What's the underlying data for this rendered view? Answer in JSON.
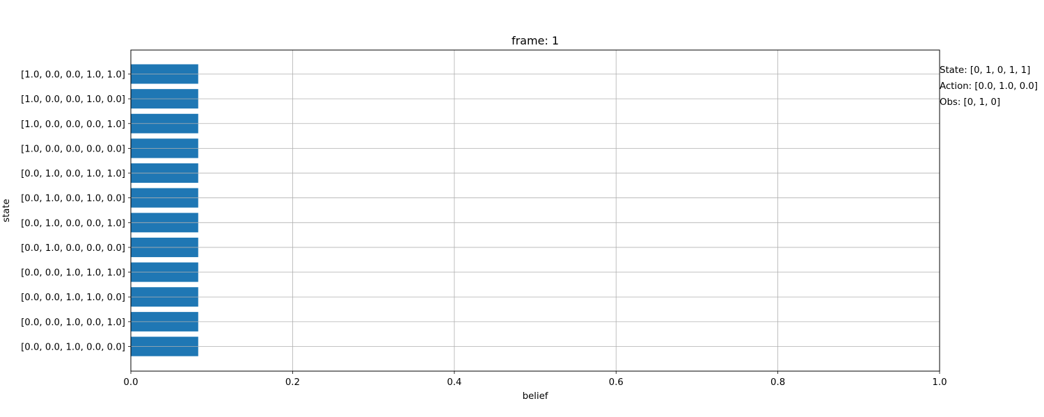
{
  "chart_data": {
    "type": "bar",
    "orientation": "horizontal",
    "title": "frame: 1",
    "xlabel": "belief",
    "ylabel": "state",
    "xlim": [
      0,
      1
    ],
    "xticks": [
      "0.0",
      "0.2",
      "0.4",
      "0.6",
      "0.8",
      "1.0"
    ],
    "grid": true,
    "bar_color": "#1f77b4",
    "categories": [
      "[0.0, 0.0, 1.0, 0.0, 0.0]",
      "[0.0, 0.0, 1.0, 0.0, 1.0]",
      "[0.0, 0.0, 1.0, 1.0, 0.0]",
      "[0.0, 0.0, 1.0, 1.0, 1.0]",
      "[0.0, 1.0, 0.0, 0.0, 0.0]",
      "[0.0, 1.0, 0.0, 0.0, 1.0]",
      "[0.0, 1.0, 0.0, 1.0, 0.0]",
      "[0.0, 1.0, 0.0, 1.0, 1.0]",
      "[1.0, 0.0, 0.0, 0.0, 0.0]",
      "[1.0, 0.0, 0.0, 0.0, 1.0]",
      "[1.0, 0.0, 0.0, 1.0, 0.0]",
      "[1.0, 0.0, 0.0, 1.0, 1.0]"
    ],
    "values": [
      0.0833,
      0.0833,
      0.0833,
      0.0833,
      0.0833,
      0.0833,
      0.0833,
      0.0833,
      0.0833,
      0.0833,
      0.0833,
      0.0833
    ]
  },
  "annotations": {
    "state": "State: [0, 1, 0, 1, 1]",
    "action": "Action: [0.0, 1.0, 0.0]",
    "obs": "Obs: [0, 1, 0]"
  }
}
